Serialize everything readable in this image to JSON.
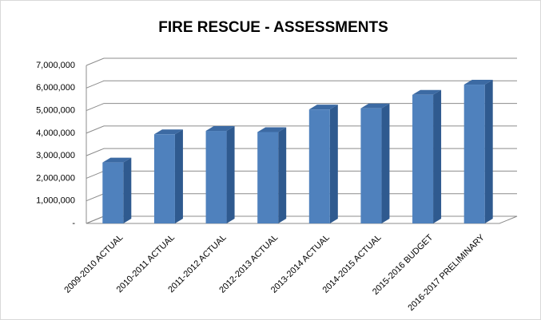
{
  "chart_data": {
    "type": "bar3d",
    "title": "FIRE RESCUE - ASSESSMENTS",
    "categories": [
      "2009-2010 ACTUAL",
      "2010-2011 ACTUAL",
      "2011-2012 ACTUAL",
      "2012-2013 ACTUAL",
      "2013-2014 ACTUAL",
      "2014-2015 ACTUAL",
      "2015-2016 BUDGET",
      "2016-2017 PRELIMINARY"
    ],
    "values": [
      2700000,
      3950000,
      4100000,
      4050000,
      5050000,
      5100000,
      5700000,
      6150000
    ],
    "color": "#4f81bd",
    "ylim": [
      0,
      7000000
    ],
    "yticks": [
      {
        "value": 0,
        "label": "-"
      },
      {
        "value": 1000000,
        "label": "1,000,000"
      },
      {
        "value": 2000000,
        "label": "2,000,000"
      },
      {
        "value": 3000000,
        "label": "3,000,000"
      },
      {
        "value": 4000000,
        "label": "4,000,000"
      },
      {
        "value": 5000000,
        "label": "5,000,000"
      },
      {
        "value": 6000000,
        "label": "6,000,000"
      },
      {
        "value": 7000000,
        "label": "7,000,000"
      }
    ],
    "grid": true
  }
}
